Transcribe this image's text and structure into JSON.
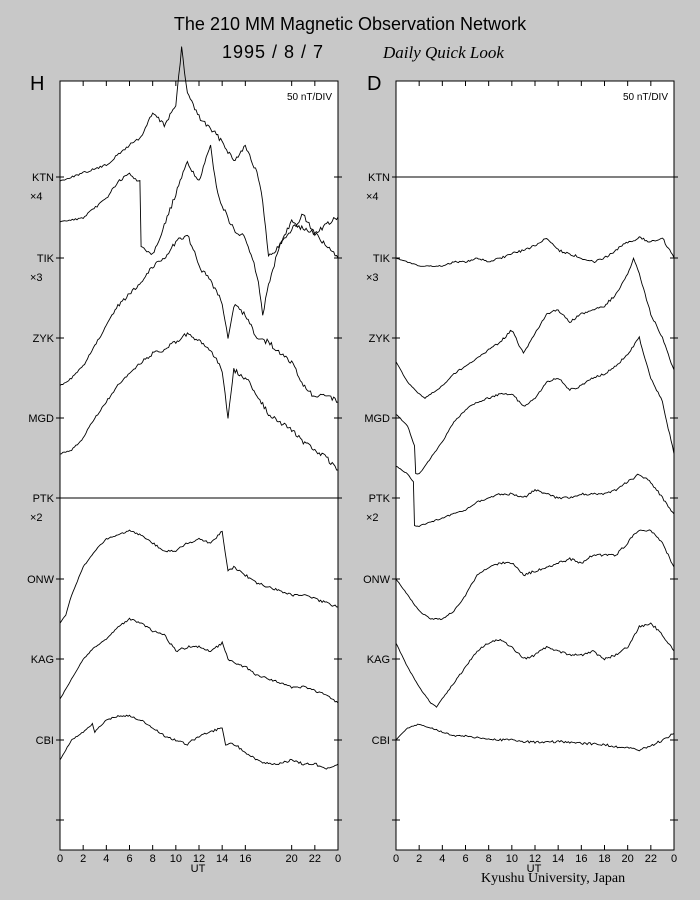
{
  "header": {
    "title": "The 210 MM Magnetic Observation Network",
    "date": "1995  /   8  /   7",
    "subtitle": "Daily Quick Look"
  },
  "footer": {
    "credit": "Kyushu University, Japan"
  },
  "chart_data": [
    {
      "type": "line",
      "panel": "H",
      "scale_label": "50 nT/DIV",
      "xlabel": "UT",
      "x_ticks": [
        "0",
        "2",
        "4",
        "6",
        "8",
        "10",
        "12",
        "14",
        "16",
        "20",
        "22",
        "0"
      ],
      "x_tick_hours": [
        0,
        2,
        4,
        6,
        8,
        10,
        12,
        14,
        16,
        20,
        22,
        24
      ],
      "station_labels": [
        "KTN",
        "TIK",
        "ZYK",
        "MGD",
        "PTK",
        "ONW",
        "KAG",
        "CBI"
      ],
      "multipliers": [
        {
          "station": "KTN",
          "text": "×4"
        },
        {
          "station": "TIK",
          "text": "×3"
        },
        {
          "station": "PTK",
          "text": "×2"
        }
      ],
      "series": [
        {
          "name": "KTN",
          "x": [
            0,
            2,
            4,
            6,
            7,
            8,
            9,
            10,
            10.5,
            11,
            12,
            13,
            14,
            15,
            16,
            17,
            17.5,
            18,
            19,
            20,
            21,
            22,
            23,
            24
          ],
          "y": [
            -0.05,
            0.05,
            0.15,
            0.4,
            0.5,
            0.8,
            0.65,
            0.9,
            1.6,
            1.05,
            0.75,
            0.6,
            0.45,
            0.2,
            0.4,
            0.05,
            -0.3,
            -1.0,
            -0.85,
            -0.55,
            -0.65,
            -0.7,
            -0.6,
            -0.5
          ]
        },
        {
          "name": "TIK",
          "x": [
            0,
            2,
            4,
            5,
            6,
            6.9,
            7,
            8,
            9,
            10,
            11,
            12,
            13,
            13.5,
            14,
            15,
            16,
            17,
            17.5,
            18,
            19,
            20,
            21,
            22,
            23,
            24
          ],
          "y": [
            0.45,
            0.5,
            0.75,
            0.95,
            1.05,
            0.95,
            0.15,
            0.05,
            0.4,
            0.8,
            1.2,
            0.95,
            1.4,
            0.9,
            0.65,
            0.35,
            0.25,
            -0.2,
            -0.7,
            -0.35,
            0.2,
            0.35,
            0.55,
            0.3,
            0.15,
            0.0
          ]
        },
        {
          "name": "ZYK",
          "x": [
            0,
            1,
            2,
            3,
            4,
            5,
            6,
            7,
            8,
            9,
            10,
            11,
            12,
            13,
            14,
            14.5,
            15,
            16,
            17,
            18,
            19,
            20,
            21,
            22,
            23,
            24
          ],
          "y": [
            -0.6,
            -0.5,
            -0.35,
            -0.1,
            0.15,
            0.4,
            0.55,
            0.7,
            0.9,
            1.0,
            1.2,
            1.3,
            0.9,
            0.7,
            0.45,
            0.0,
            0.4,
            0.3,
            0.0,
            -0.05,
            -0.2,
            -0.3,
            -0.6,
            -0.75,
            -0.7,
            -0.8
          ]
        },
        {
          "name": "MGD",
          "x": [
            0,
            1,
            2,
            3,
            4,
            5,
            6,
            7,
            8,
            9,
            10,
            11,
            12,
            13,
            14,
            14.5,
            15,
            16,
            17,
            18,
            19,
            20,
            21,
            22,
            23,
            24
          ],
          "y": [
            -0.45,
            -0.4,
            -0.25,
            0.0,
            0.2,
            0.4,
            0.55,
            0.7,
            0.8,
            0.85,
            0.95,
            1.05,
            0.95,
            0.85,
            0.6,
            0.0,
            0.6,
            0.5,
            0.3,
            0.05,
            -0.05,
            -0.15,
            -0.3,
            -0.4,
            -0.5,
            -0.65
          ]
        },
        {
          "name": "PTK",
          "x": [],
          "y": []
        },
        {
          "name": "ONW",
          "x": [
            0,
            0.5,
            1,
            2,
            3,
            4,
            5,
            6,
            7,
            8,
            9,
            10,
            11,
            12,
            13,
            14,
            14.5,
            15,
            16,
            17,
            18,
            19,
            20,
            21,
            22,
            23,
            24
          ],
          "y": [
            -0.55,
            -0.45,
            -0.2,
            0.15,
            0.35,
            0.5,
            0.55,
            0.6,
            0.55,
            0.45,
            0.35,
            0.35,
            0.45,
            0.5,
            0.45,
            0.6,
            0.1,
            0.15,
            0.05,
            -0.05,
            -0.1,
            -0.15,
            -0.2,
            -0.2,
            -0.25,
            -0.3,
            -0.35
          ]
        },
        {
          "name": "KAG",
          "x": [
            0,
            1,
            2,
            3,
            4,
            5,
            6,
            7,
            8,
            9,
            10,
            11,
            12,
            13,
            14,
            14.5,
            15,
            16,
            17,
            18,
            19,
            20,
            21,
            22,
            23,
            24
          ],
          "y": [
            -0.5,
            -0.25,
            0.0,
            0.15,
            0.25,
            0.4,
            0.5,
            0.45,
            0.35,
            0.3,
            0.1,
            0.15,
            0.15,
            0.1,
            0.2,
            0.0,
            -0.05,
            -0.1,
            -0.2,
            -0.25,
            -0.3,
            -0.35,
            -0.35,
            -0.4,
            -0.45,
            -0.55
          ]
        },
        {
          "name": "CBI",
          "x": [
            0,
            1,
            2,
            2.8,
            3,
            4,
            5,
            6,
            7,
            8,
            9,
            10,
            11,
            12,
            13,
            14,
            14.3,
            15,
            16,
            17,
            18,
            19,
            20,
            21,
            22,
            23,
            24
          ],
          "y": [
            -0.25,
            0.0,
            0.1,
            0.2,
            0.1,
            0.25,
            0.3,
            0.3,
            0.25,
            0.15,
            0.05,
            0.0,
            -0.05,
            0.05,
            0.1,
            0.15,
            -0.05,
            -0.05,
            -0.15,
            -0.25,
            -0.3,
            -0.3,
            -0.25,
            -0.3,
            -0.3,
            -0.35,
            -0.3
          ]
        }
      ]
    },
    {
      "type": "line",
      "panel": "D",
      "scale_label": "50 nT/DIV",
      "xlabel": "UT",
      "x_ticks": [
        "0",
        "2",
        "4",
        "6",
        "8",
        "10",
        "12",
        "14",
        "16",
        "18",
        "20",
        "22",
        "0"
      ],
      "x_tick_hours": [
        0,
        2,
        4,
        6,
        8,
        10,
        12,
        14,
        16,
        18,
        20,
        22,
        24
      ],
      "station_labels": [
        "KTN",
        "TIK",
        "ZYK",
        "MGD",
        "PTK",
        "ONW",
        "KAG",
        "CBI"
      ],
      "multipliers": [
        {
          "station": "KTN",
          "text": "×4"
        },
        {
          "station": "TIK",
          "text": "×3"
        },
        {
          "station": "PTK",
          "text": "×2"
        }
      ],
      "series": [
        {
          "name": "KTN",
          "x": [],
          "y": []
        },
        {
          "name": "TIK",
          "x": [
            0,
            1,
            2,
            3,
            4,
            5,
            6,
            7,
            8,
            9,
            10,
            11,
            12,
            13,
            14,
            15,
            16,
            17,
            18,
            19,
            20,
            21,
            22,
            23,
            24
          ],
          "y": [
            0.0,
            -0.05,
            -0.1,
            -0.1,
            -0.1,
            -0.05,
            -0.05,
            0.0,
            -0.05,
            0.0,
            0.05,
            0.1,
            0.15,
            0.25,
            0.1,
            0.05,
            0.0,
            -0.05,
            0.0,
            0.1,
            0.2,
            0.25,
            0.2,
            0.25,
            0.0
          ]
        },
        {
          "name": "ZYK",
          "x": [
            0,
            1,
            2,
            2.5,
            3,
            4,
            5,
            6,
            7,
            8,
            9,
            10,
            11,
            12,
            13,
            14,
            15,
            16,
            17,
            18,
            19,
            20,
            20.5,
            21,
            22,
            23,
            24
          ],
          "y": [
            -0.3,
            -0.55,
            -0.7,
            -0.75,
            -0.7,
            -0.6,
            -0.45,
            -0.35,
            -0.25,
            -0.15,
            -0.05,
            0.1,
            -0.2,
            0.05,
            0.3,
            0.35,
            0.2,
            0.3,
            0.35,
            0.4,
            0.55,
            0.8,
            1.0,
            0.8,
            0.3,
            0.0,
            -0.4
          ]
        },
        {
          "name": "MGD",
          "x": [
            0,
            1,
            1.6,
            1.7,
            2,
            3,
            4,
            5,
            6,
            7,
            8,
            9,
            10,
            11,
            12,
            13,
            14,
            15,
            16,
            17,
            18,
            19,
            20,
            21,
            22,
            23,
            24
          ],
          "y": [
            0.05,
            -0.1,
            -0.35,
            -0.7,
            -0.7,
            -0.5,
            -0.3,
            -0.05,
            0.1,
            0.2,
            0.25,
            0.3,
            0.3,
            0.15,
            0.25,
            0.45,
            0.5,
            0.35,
            0.4,
            0.5,
            0.55,
            0.65,
            0.8,
            1.0,
            0.5,
            0.2,
            -0.45
          ]
        },
        {
          "name": "PTK",
          "x": [
            0,
            1,
            1.5,
            1.6,
            2,
            3,
            4,
            5,
            6,
            7,
            8,
            9,
            10,
            11,
            12,
            13,
            14,
            15,
            16,
            17,
            18,
            19,
            20,
            21,
            22,
            23,
            24
          ],
          "y": [
            0.4,
            0.3,
            0.2,
            -0.35,
            -0.35,
            -0.3,
            -0.25,
            -0.2,
            -0.15,
            -0.05,
            0.0,
            0.05,
            0.05,
            0.0,
            0.1,
            0.05,
            0.0,
            0.0,
            0.05,
            0.05,
            0.05,
            0.1,
            0.2,
            0.3,
            0.2,
            0.0,
            -0.2
          ]
        },
        {
          "name": "ONW",
          "x": [
            0,
            1,
            2,
            3,
            4,
            5,
            6,
            7,
            8,
            9,
            10,
            11,
            12,
            13,
            14,
            15,
            16,
            17,
            18,
            19,
            20,
            20.5,
            21,
            22,
            23,
            24
          ],
          "y": [
            0.0,
            -0.2,
            -0.4,
            -0.5,
            -0.5,
            -0.4,
            -0.2,
            0.05,
            0.15,
            0.2,
            0.2,
            0.05,
            0.1,
            0.15,
            0.2,
            0.25,
            0.2,
            0.3,
            0.3,
            0.3,
            0.45,
            0.55,
            0.6,
            0.6,
            0.45,
            0.15
          ]
        },
        {
          "name": "KAG",
          "x": [
            0,
            1,
            2,
            3,
            3.5,
            4,
            5,
            6,
            7,
            8,
            9,
            10,
            11,
            12,
            13,
            14,
            15,
            16,
            17,
            18,
            19,
            20,
            21,
            22,
            23,
            24
          ],
          "y": [
            0.2,
            -0.1,
            -0.35,
            -0.55,
            -0.6,
            -0.5,
            -0.3,
            -0.1,
            0.1,
            0.2,
            0.25,
            0.15,
            0.0,
            0.05,
            0.15,
            0.1,
            0.05,
            0.05,
            0.1,
            0.0,
            0.05,
            0.15,
            0.4,
            0.45,
            0.3,
            0.1
          ]
        },
        {
          "name": "CBI",
          "x": [
            0,
            1,
            2,
            3,
            4,
            5,
            6,
            7,
            8,
            9,
            10,
            11,
            12,
            13,
            14,
            15,
            16,
            17,
            18,
            19,
            20,
            21,
            22,
            23,
            24
          ],
          "y": [
            0.0,
            0.15,
            0.2,
            0.15,
            0.1,
            0.05,
            0.05,
            0.03,
            0.02,
            0.0,
            0.0,
            -0.02,
            -0.03,
            -0.03,
            -0.02,
            -0.03,
            -0.04,
            -0.05,
            -0.06,
            -0.08,
            -0.1,
            -0.12,
            -0.08,
            0.0,
            0.08
          ]
        }
      ]
    }
  ]
}
